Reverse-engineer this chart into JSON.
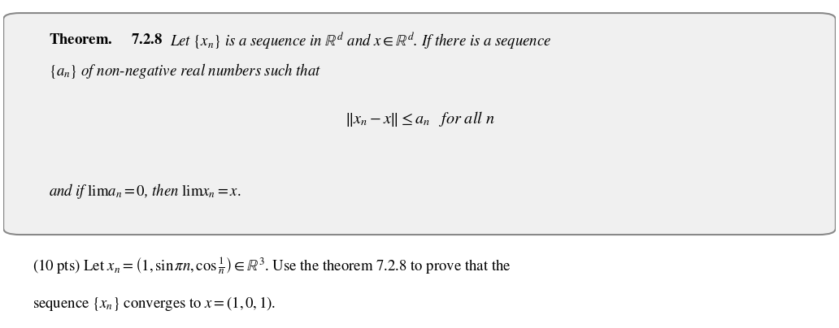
{
  "bg_color": "#ffffff",
  "box_bg_color": "#f0f0f0",
  "box_edge_color": "#888888",
  "figsize": [
    10.32,
    4.04
  ],
  "dpi": 100,
  "theorem_line1": "\\textbf{Theorem.}\\;\\textbf{7.2.8}\\;\\textit{Let $\\{x_n\\}$ is a sequence in $\\mathbb{R}^d$ and $x \\in \\mathbb{R}^d$. If there is a sequence}",
  "theorem_line2": "\\textit{$\\{a_n\\}$ of non-negative real numbers such that}",
  "theorem_center": "$\\|x_n - x\\| \\leq a_n \\quad$ \\textit{for all $n$}",
  "theorem_line3": "\\textit{and if} $\\lim a_n = 0$\\textit{, then} $\\lim x_n = x.$",
  "problem_line1": "$(10 \\text{ pts})$ Let $x_n = \\left(1, \\sin \\pi n, \\cos \\frac{1}{n}\\right) \\in \\mathbb{R}^3$. Use the theorem 7.2.8 to prove that the",
  "problem_line2": "sequence $\\{x_n\\}$ converges to $x = (1, 0, 1)$."
}
